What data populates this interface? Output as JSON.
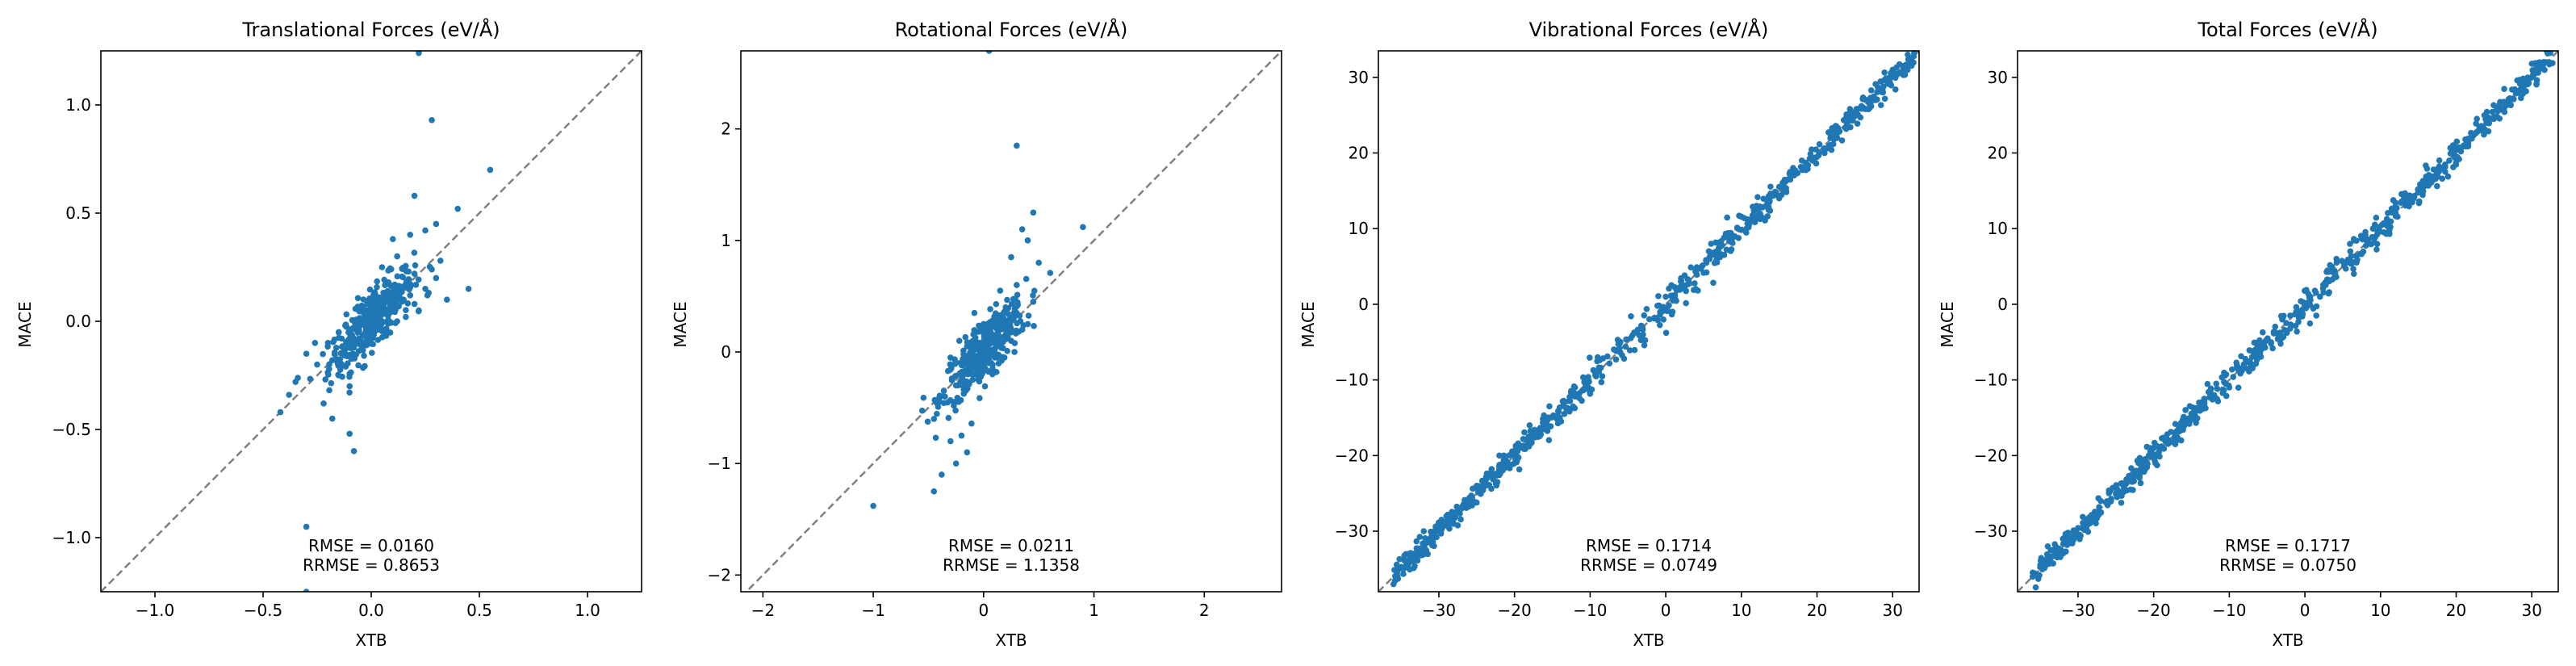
{
  "chart_data": [
    {
      "type": "scatter",
      "title": "Translational Forces (eV/Å)",
      "xlabel": "XTB",
      "ylabel": "MACE",
      "xlim": [
        -1.25,
        1.25
      ],
      "ylim": [
        -1.25,
        1.25
      ],
      "xticks": [
        -1.0,
        -0.5,
        0.0,
        0.5,
        1.0
      ],
      "yticks": [
        -1.0,
        -0.5,
        0.0,
        0.5,
        1.0
      ],
      "xtick_labels": [
        "−1.0",
        "−0.5",
        "0.0",
        "0.5",
        "1.0"
      ],
      "ytick_labels": [
        "−1.0",
        "−0.5",
        "0.0",
        "0.5",
        "1.0"
      ],
      "reference_line": "y = x (dashed grey)",
      "annotations": [
        "RMSE = 0.0160",
        "RRMSE = 0.8653"
      ],
      "series": [
        {
          "name": "translational",
          "color": "#1f77b4",
          "points": [
            [
              -0.3,
              -0.95
            ],
            [
              0.28,
              0.93
            ],
            [
              0.22,
              1.24
            ],
            [
              0.55,
              0.7
            ],
            [
              -0.08,
              -0.6
            ],
            [
              -0.3,
              -1.25
            ],
            [
              -0.42,
              -0.42
            ],
            [
              -0.35,
              -0.28
            ],
            [
              -0.38,
              -0.34
            ],
            [
              0.2,
              0.58
            ],
            [
              0.4,
              0.52
            ],
            [
              0.3,
              0.45
            ],
            [
              0.25,
              0.42
            ],
            [
              0.18,
              0.4
            ],
            [
              0.1,
              0.38
            ],
            [
              0.32,
              0.28
            ],
            [
              0.12,
              0.3
            ],
            [
              0.45,
              0.15
            ],
            [
              0.2,
              0.22
            ],
            [
              0.05,
              0.25
            ],
            [
              -0.1,
              -0.52
            ],
            [
              -0.18,
              -0.45
            ],
            [
              -0.22,
              -0.38
            ],
            [
              -0.25,
              -0.2
            ],
            [
              -0.3,
              -0.15
            ],
            [
              -0.2,
              -0.1
            ],
            [
              -0.15,
              -0.25
            ],
            [
              -0.1,
              -0.3
            ],
            [
              -0.12,
              -0.15
            ],
            [
              -0.05,
              -0.1
            ],
            [
              0.0,
              -0.05
            ],
            [
              0.05,
              0.0
            ],
            [
              0.1,
              0.05
            ],
            [
              0.15,
              0.1
            ],
            [
              0.2,
              0.08
            ],
            [
              0.25,
              0.15
            ],
            [
              0.3,
              0.2
            ],
            [
              -0.08,
              0.0
            ],
            [
              0.02,
              0.12
            ],
            [
              0.08,
              0.18
            ],
            [
              -0.02,
              -0.02
            ],
            [
              0.12,
              0.0
            ],
            [
              0.0,
              0.08
            ],
            [
              -0.15,
              -0.05
            ],
            [
              0.18,
              0.12
            ],
            [
              0.22,
              0.05
            ],
            [
              -0.05,
              0.05
            ],
            [
              0.06,
              -0.04
            ],
            [
              -0.1,
              -0.08
            ],
            [
              0.14,
              0.16
            ],
            [
              0.03,
              0.03
            ],
            [
              -0.03,
              -0.06
            ],
            [
              0.09,
              0.09
            ],
            [
              -0.12,
              -0.02
            ],
            [
              0.16,
              0.02
            ],
            [
              0.26,
              0.12
            ],
            [
              -0.18,
              -0.18
            ],
            [
              -0.26,
              -0.1
            ],
            [
              0.35,
              0.1
            ],
            [
              0.28,
              0.24
            ]
          ]
        }
      ],
      "color": "#1f77b4"
    },
    {
      "type": "scatter",
      "title": "Rotational Forces (eV/Å)",
      "xlabel": "XTB",
      "ylabel": "MACE",
      "xlim": [
        -2.2,
        2.7
      ],
      "ylim": [
        -2.15,
        2.7
      ],
      "xticks": [
        -2,
        -1,
        0,
        1,
        2
      ],
      "yticks": [
        -2,
        -1,
        0,
        1,
        2
      ],
      "xtick_labels": [
        "−2",
        "−1",
        "0",
        "1",
        "2"
      ],
      "ytick_labels": [
        "−2",
        "−1",
        "0",
        "1",
        "2"
      ],
      "reference_line": "y = x (dashed grey)",
      "annotations": [
        "RMSE = 0.0211",
        "RRMSE = 1.1358"
      ],
      "series": [
        {
          "name": "rotational",
          "color": "#1f77b4",
          "points": [
            [
              0.05,
              2.7
            ],
            [
              -1.0,
              -1.38
            ],
            [
              -0.45,
              -1.25
            ],
            [
              -0.25,
              -1.0
            ],
            [
              -0.38,
              -1.1
            ],
            [
              -0.3,
              -0.8
            ],
            [
              -0.15,
              -0.9
            ],
            [
              -0.2,
              -0.75
            ],
            [
              -0.45,
              -0.6
            ],
            [
              -0.35,
              -0.4
            ],
            [
              0.3,
              1.85
            ],
            [
              0.45,
              1.25
            ],
            [
              0.9,
              1.12
            ],
            [
              0.35,
              1.1
            ],
            [
              0.4,
              1.0
            ],
            [
              0.25,
              0.85
            ],
            [
              0.5,
              0.8
            ],
            [
              0.3,
              0.6
            ],
            [
              0.15,
              0.55
            ],
            [
              0.45,
              0.45
            ],
            [
              0.2,
              0.4
            ],
            [
              0.1,
              0.3
            ],
            [
              0.3,
              0.35
            ],
            [
              0.0,
              0.1
            ],
            [
              -0.1,
              0.0
            ],
            [
              0.05,
              -0.1
            ],
            [
              -0.2,
              -0.2
            ],
            [
              -0.25,
              -0.3
            ],
            [
              0.2,
              0.2
            ],
            [
              0.15,
              0.05
            ],
            [
              -0.05,
              -0.05
            ],
            [
              0.1,
              0.15
            ],
            [
              -0.15,
              0.05
            ],
            [
              0.25,
              0.1
            ],
            [
              -0.3,
              -0.05
            ],
            [
              0.0,
              0.25
            ],
            [
              0.35,
              0.2
            ],
            [
              -0.1,
              -0.25
            ],
            [
              0.18,
              0.3
            ],
            [
              -0.22,
              0.1
            ],
            [
              0.08,
              -0.2
            ],
            [
              0.28,
              0.0
            ],
            [
              -0.05,
              0.18
            ],
            [
              -0.18,
              -0.12
            ],
            [
              0.12,
              -0.05
            ],
            [
              0.4,
              0.25
            ],
            [
              0.02,
              0.05
            ],
            [
              -0.08,
              0.08
            ]
          ]
        }
      ],
      "color": "#1f77b4"
    },
    {
      "type": "scatter",
      "title": "Vibrational Forces (eV/Å)",
      "xlabel": "XTB",
      "ylabel": "MACE",
      "xlim": [
        -38,
        33.5
      ],
      "ylim": [
        -38,
        33.5
      ],
      "xticks": [
        -30,
        -20,
        -10,
        0,
        10,
        20,
        30
      ],
      "yticks": [
        -30,
        -20,
        -10,
        0,
        10,
        20,
        30
      ],
      "xtick_labels": [
        "−30",
        "−20",
        "−10",
        "0",
        "10",
        "20",
        "30"
      ],
      "ytick_labels": [
        "−30",
        "−20",
        "−10",
        "0",
        "10",
        "20",
        "30"
      ],
      "reference_line": "y = x (dashed grey)",
      "annotations": [
        "RMSE = 0.1714",
        "RRMSE = 0.0749"
      ],
      "diagonal_band": {
        "x_range": [
          -36,
          33
        ],
        "spread": 1.4,
        "count": 700
      },
      "series": [
        {
          "name": "vibrational",
          "color": "#1f77b4",
          "points": [
            [
              -36,
              -37
            ],
            [
              -34,
              -33
            ],
            [
              -32,
              -30
            ],
            [
              -29,
              -28
            ],
            [
              -27,
              -27
            ],
            [
              -25,
              -24
            ],
            [
              -22,
              -20
            ],
            [
              -20,
              -21
            ],
            [
              -18,
              -16
            ],
            [
              -14,
              -15
            ],
            [
              -12,
              -11
            ],
            [
              -9,
              -7
            ],
            [
              -6,
              -5
            ],
            [
              -3,
              -4
            ],
            [
              0,
              1
            ],
            [
              2,
              3
            ],
            [
              4,
              2
            ],
            [
              6,
              8
            ],
            [
              9,
              9
            ],
            [
              12,
              13
            ],
            [
              15,
              14
            ],
            [
              18,
              19
            ],
            [
              21,
              20
            ],
            [
              24,
              25
            ],
            [
              27,
              26
            ],
            [
              30,
              31
            ],
            [
              32,
              33
            ]
          ]
        }
      ],
      "color": "#1f77b4"
    },
    {
      "type": "scatter",
      "title": "Total Forces (eV/Å)",
      "xlabel": "XTB",
      "ylabel": "MACE",
      "xlim": [
        -38,
        33.5
      ],
      "ylim": [
        -38,
        33.5
      ],
      "xticks": [
        -30,
        -20,
        -10,
        0,
        10,
        20,
        30
      ],
      "yticks": [
        -30,
        -20,
        -10,
        0,
        10,
        20,
        30
      ],
      "xtick_labels": [
        "−30",
        "−20",
        "−10",
        "0",
        "10",
        "20",
        "30"
      ],
      "ytick_labels": [
        "−30",
        "−20",
        "−10",
        "0",
        "10",
        "20",
        "30"
      ],
      "reference_line": "y = x (dashed grey)",
      "annotations": [
        "RMSE = 0.1717",
        "RRMSE = 0.0750"
      ],
      "diagonal_band": {
        "x_range": [
          -36,
          33
        ],
        "spread": 1.4,
        "count": 700
      },
      "series": [
        {
          "name": "total",
          "color": "#1f77b4",
          "points": [
            [
              -36,
              -36
            ],
            [
              -34,
              -32
            ],
            [
              -32,
              -31
            ],
            [
              -29,
              -29
            ],
            [
              -27,
              -26
            ],
            [
              -25,
              -25
            ],
            [
              -22,
              -21
            ],
            [
              -20,
              -19
            ],
            [
              -18,
              -18
            ],
            [
              -14,
              -13
            ],
            [
              -12,
              -12
            ],
            [
              -9,
              -8
            ],
            [
              -6,
              -6
            ],
            [
              -3,
              -2
            ],
            [
              0,
              0
            ],
            [
              2,
              1
            ],
            [
              4,
              4
            ],
            [
              6,
              7
            ],
            [
              9,
              10
            ],
            [
              12,
              12
            ],
            [
              15,
              15
            ],
            [
              18,
              18
            ],
            [
              21,
              21
            ],
            [
              24,
              24
            ],
            [
              27,
              27
            ],
            [
              30,
              30
            ],
            [
              32,
              32
            ]
          ]
        }
      ],
      "color": "#1f77b4"
    }
  ]
}
